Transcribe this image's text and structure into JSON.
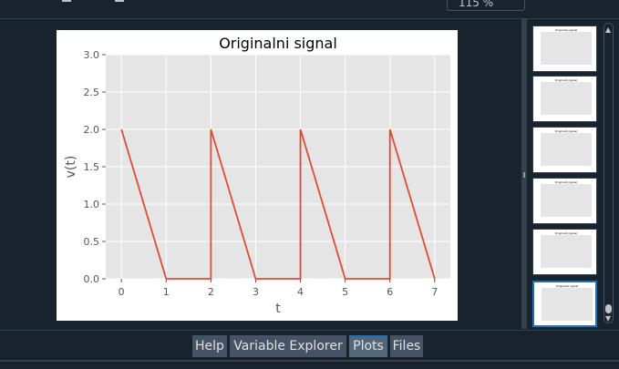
{
  "toolbar": {
    "zoom_value": "115 %"
  },
  "plot": {
    "title": "Originalni signal",
    "xlabel": "t",
    "ylabel": "v(t)"
  },
  "chart_data": {
    "type": "line",
    "title": "Originalni signal",
    "xlabel": "t",
    "ylabel": "v(t)",
    "xlim": [
      -0.35,
      7.35
    ],
    "ylim": [
      0,
      3
    ],
    "xticks": [
      "0",
      "1",
      "2",
      "3",
      "4",
      "5",
      "6",
      "7"
    ],
    "yticks": [
      "0.0",
      "0.5",
      "1.0",
      "1.5",
      "2.0",
      "2.5",
      "3.0"
    ],
    "grid": true,
    "series": [
      {
        "x": [
          0,
          1,
          2,
          2,
          3,
          4,
          4,
          5,
          6,
          6,
          7
        ],
        "y": [
          2,
          0,
          0,
          2,
          0,
          0,
          2,
          0,
          0,
          2,
          0
        ],
        "color": "#e24a33"
      }
    ]
  },
  "thumbnails": [
    {
      "title": "Originalni signal"
    },
    {
      "title": "Originalni signal"
    },
    {
      "title": "Originalni signal"
    },
    {
      "title": "Originalni signal"
    },
    {
      "title": "Originalni signal"
    },
    {
      "title": "Originalni signal",
      "selected": true
    }
  ],
  "tabs": [
    {
      "label": "Help"
    },
    {
      "label": "Variable Explorer"
    },
    {
      "label": "Plots",
      "active": true
    },
    {
      "label": "Files"
    }
  ],
  "colors": {
    "background": "#19232d",
    "tab": "#455364",
    "active_accent": "#1a72bb",
    "plot_bg": "#e5e5e5",
    "line": "#e24a33"
  }
}
